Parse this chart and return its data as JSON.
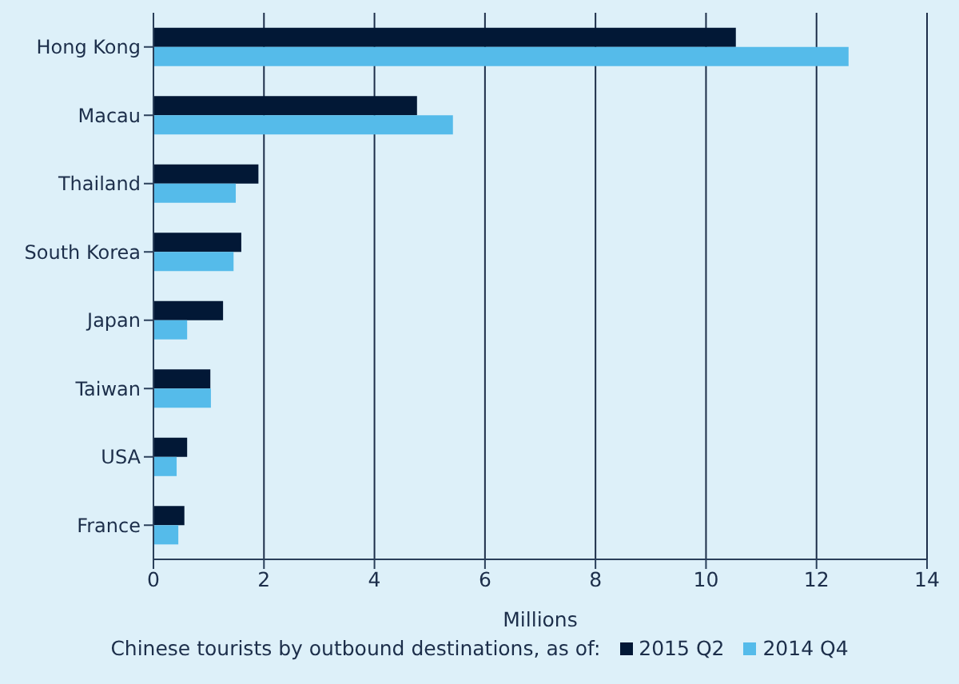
{
  "chart_data": {
    "type": "bar",
    "orientation": "horizontal",
    "categories": [
      "Hong Kong",
      "Macau",
      "Thailand",
      "South Korea",
      "Japan",
      "Taiwan",
      "USA",
      "France"
    ],
    "series": [
      {
        "name": "2015 Q2",
        "color": "#021836",
        "values": [
          10.54,
          4.77,
          1.9,
          1.59,
          1.26,
          1.03,
          0.61,
          0.56
        ]
      },
      {
        "name": "2014 Q4",
        "color": "#55bbea",
        "values": [
          12.58,
          5.42,
          1.49,
          1.45,
          0.61,
          1.04,
          0.42,
          0.45
        ]
      }
    ],
    "xlim": [
      0,
      14
    ],
    "xticks": [
      0,
      2,
      4,
      6,
      8,
      10,
      12,
      14
    ],
    "xlabel": "Millions",
    "legend_title": "Chinese tourists by outbound destinations, as of:",
    "legend": "bottom",
    "grid": "x"
  }
}
